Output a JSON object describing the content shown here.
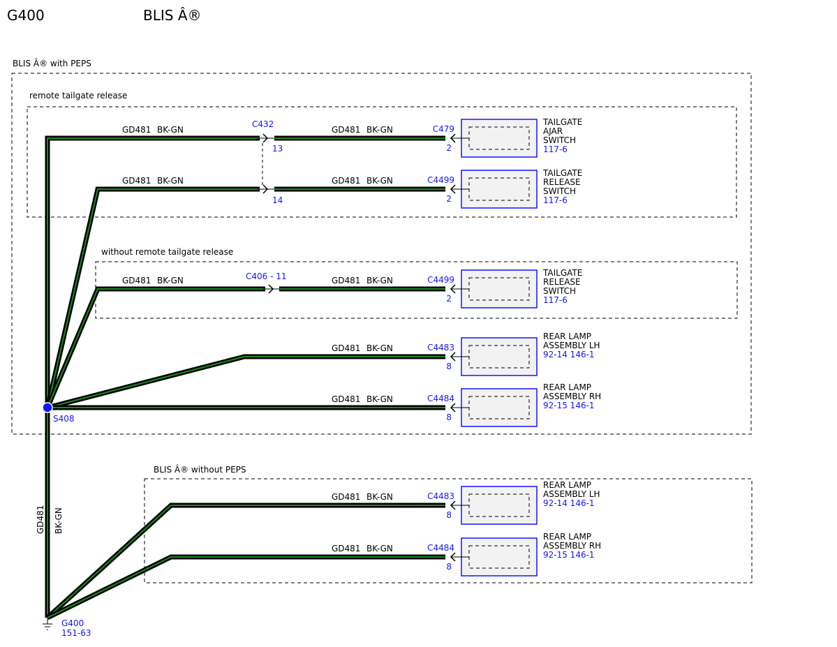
{
  "header": {
    "ground_id": "G400",
    "system": "BLIS Â®"
  },
  "groups": {
    "with_peps": "BLIS Â® with PEPS",
    "remote": "remote tailgate release",
    "without_remote": "without remote tailgate release",
    "without_peps": "BLIS Â® without PEPS"
  },
  "wire": {
    "circuit": "GD481",
    "color": "BK-GN"
  },
  "inline_connectors": {
    "c432": {
      "label": "C432",
      "pin_a": "13",
      "pin_b": "14"
    },
    "c406": {
      "label": "C406 - 11"
    }
  },
  "splice": {
    "label": "S408"
  },
  "ground": {
    "label": "G400",
    "ref": "151-63"
  },
  "components": [
    {
      "connector": "C479",
      "pin": "2",
      "name": [
        "TAILGATE",
        "AJAR",
        "SWITCH"
      ],
      "ref": "117-6"
    },
    {
      "connector": "C4499",
      "pin": "2",
      "name": [
        "TAILGATE",
        "RELEASE",
        "SWITCH"
      ],
      "ref": "117-6"
    },
    {
      "connector": "C4499",
      "pin": "2",
      "name": [
        "TAILGATE",
        "RELEASE",
        "SWITCH"
      ],
      "ref": "117-6"
    },
    {
      "connector": "C4483",
      "pin": "8",
      "name": [
        "REAR LAMP",
        "ASSEMBLY LH"
      ],
      "ref": "92-14 146-1"
    },
    {
      "connector": "C4484",
      "pin": "8",
      "name": [
        "REAR LAMP",
        "ASSEMBLY RH"
      ],
      "ref": "92-15 146-1"
    },
    {
      "connector": "C4483",
      "pin": "8",
      "name": [
        "REAR LAMP",
        "ASSEMBLY LH"
      ],
      "ref": "92-14 146-1"
    },
    {
      "connector": "C4484",
      "pin": "8",
      "name": [
        "REAR LAMP",
        "ASSEMBLY RH"
      ],
      "ref": "92-15 146-1"
    }
  ],
  "colors": {
    "wire_outer": "#000000",
    "wire_stripe": "#1a8a1a",
    "accent": "#1414ff",
    "box_fill": "#f2f2f2"
  }
}
